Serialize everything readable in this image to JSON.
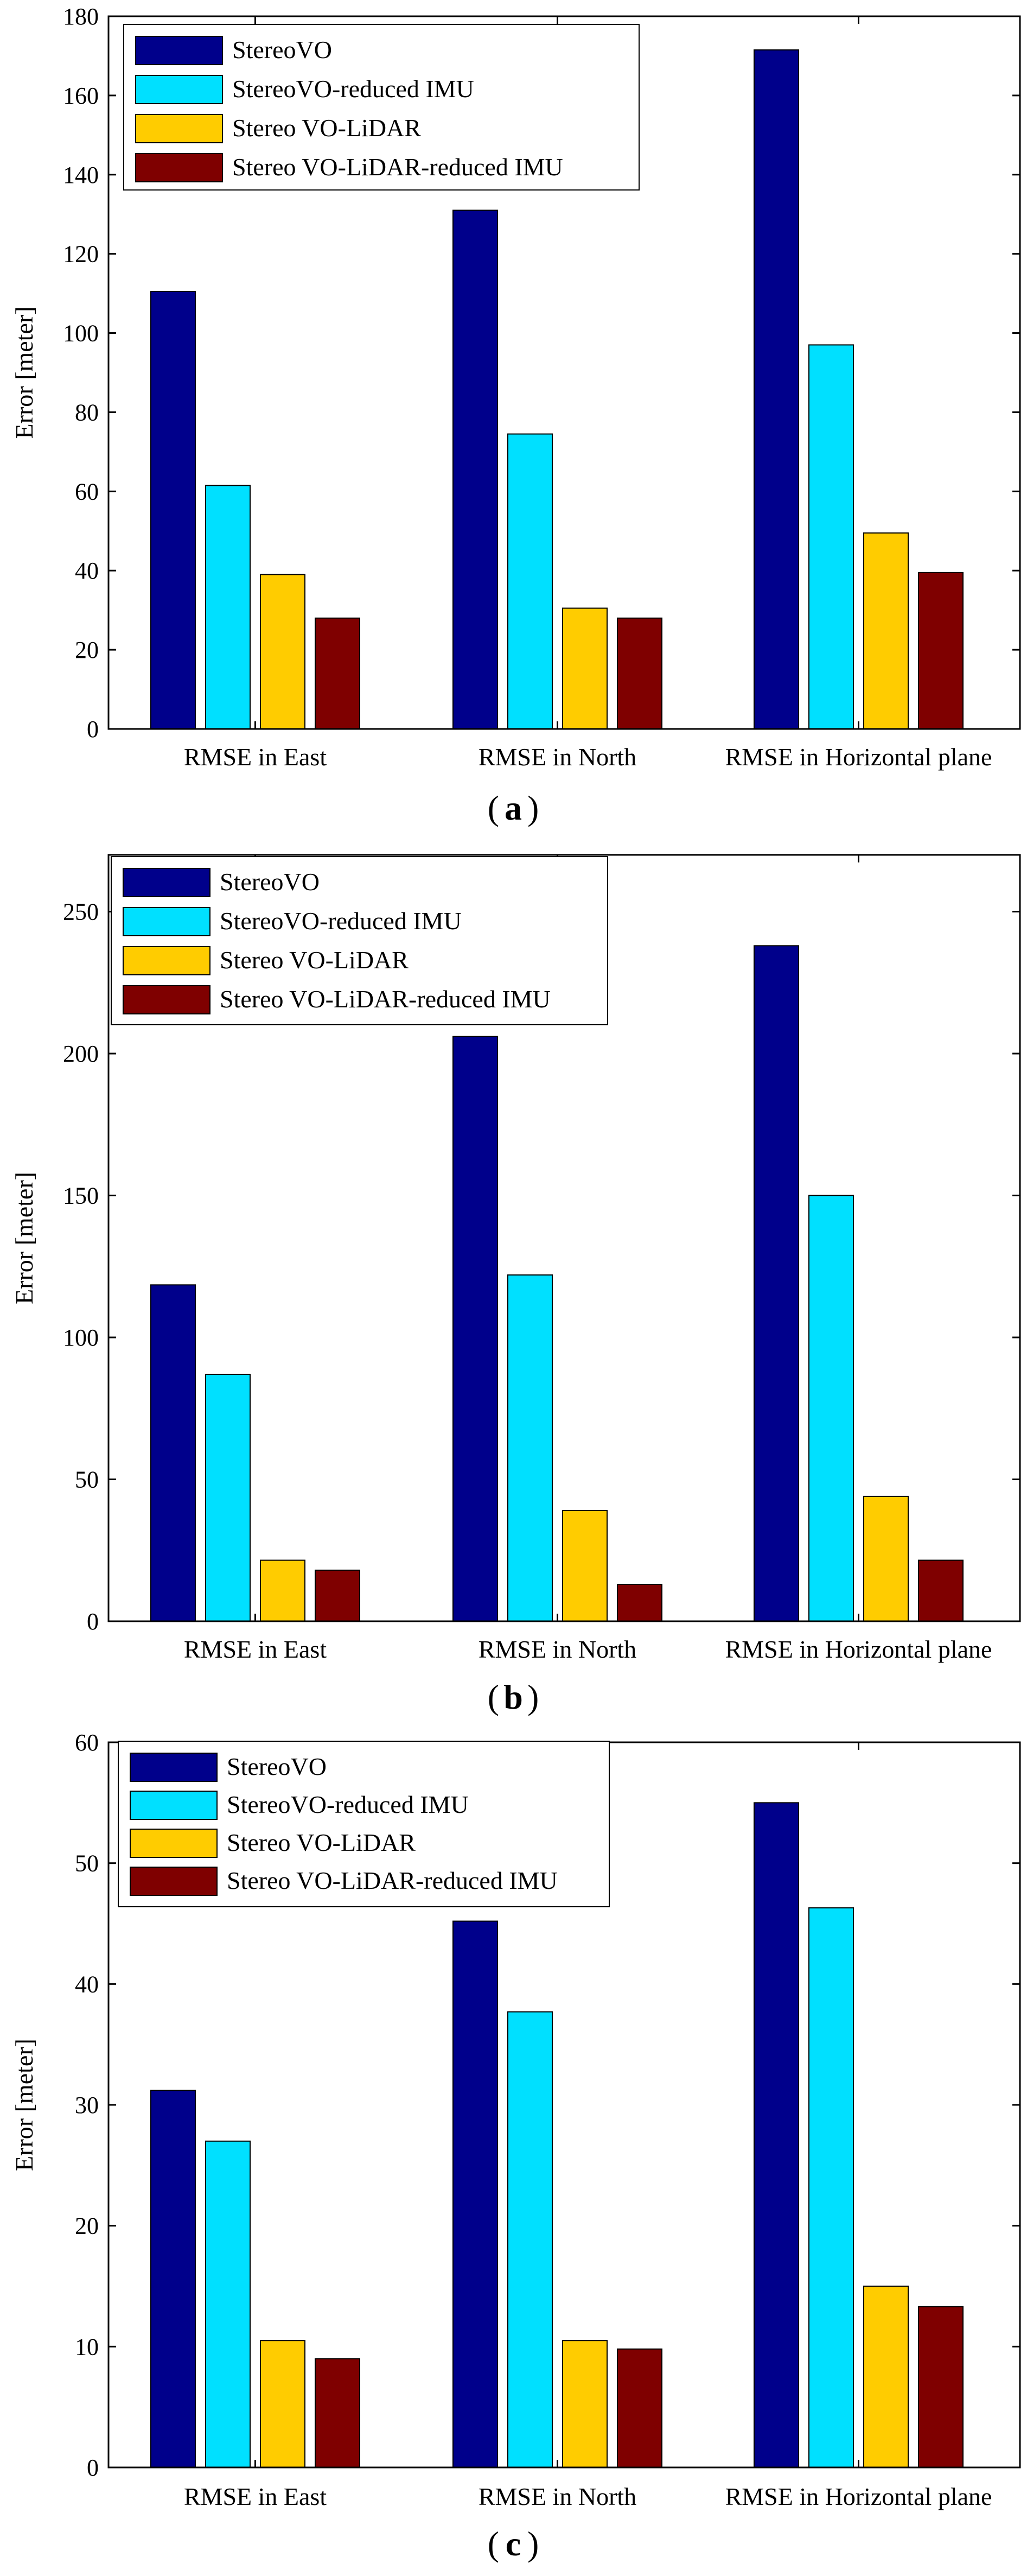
{
  "chart_data": [
    {
      "type": "bar",
      "caption_letter": "a",
      "ylabel": "Error [meter]",
      "ylim": [
        0,
        180
      ],
      "yticks": [
        0,
        20,
        40,
        60,
        80,
        100,
        120,
        140,
        160,
        180
      ],
      "categories": [
        "RMSE in East",
        "RMSE in North",
        "RMSE in Horizontal plane"
      ],
      "series": [
        {
          "name": "StereoVO",
          "color": "#00008B",
          "values": [
            110.5,
            131,
            171.5
          ]
        },
        {
          "name": "StereoVO-reduced IMU",
          "color": "#00E0FF",
          "values": [
            61.5,
            74.5,
            97
          ]
        },
        {
          "name": "Stereo VO-LiDAR",
          "color": "#FFCC00",
          "values": [
            39,
            30.5,
            49.5
          ]
        },
        {
          "name": "Stereo VO-LiDAR-reduced IMU",
          "color": "#7F0000",
          "values": [
            28,
            28,
            39.5
          ]
        }
      ],
      "legend_position": "top-left"
    },
    {
      "type": "bar",
      "caption_letter": "b",
      "ylabel": "Error [meter]",
      "ylim": [
        0,
        270
      ],
      "yticks": [
        0,
        50,
        100,
        150,
        200,
        250
      ],
      "categories": [
        "RMSE in East",
        "RMSE in North",
        "RMSE in Horizontal plane"
      ],
      "series": [
        {
          "name": "StereoVO",
          "color": "#00008B",
          "values": [
            118.5,
            206,
            238
          ]
        },
        {
          "name": "StereoVO-reduced IMU",
          "color": "#00E0FF",
          "values": [
            87,
            122,
            150
          ]
        },
        {
          "name": "Stereo VO-LiDAR",
          "color": "#FFCC00",
          "values": [
            21.5,
            39,
            44
          ]
        },
        {
          "name": "Stereo VO-LiDAR-reduced IMU",
          "color": "#7F0000",
          "values": [
            18,
            13,
            21.5
          ]
        }
      ],
      "legend_position": "top-left"
    },
    {
      "type": "bar",
      "caption_letter": "c",
      "ylabel": "Error [meter]",
      "ylim": [
        0,
        60
      ],
      "yticks": [
        0,
        10,
        20,
        30,
        40,
        50,
        60
      ],
      "categories": [
        "RMSE in East",
        "RMSE in North",
        "RMSE in Horizontal plane"
      ],
      "series": [
        {
          "name": "StereoVO",
          "color": "#00008B",
          "values": [
            31.2,
            45.2,
            55
          ]
        },
        {
          "name": "StereoVO-reduced IMU",
          "color": "#00E0FF",
          "values": [
            27,
            37.7,
            46.3
          ]
        },
        {
          "name": "Stereo VO-LiDAR",
          "color": "#FFCC00",
          "values": [
            10.5,
            10.5,
            15
          ]
        },
        {
          "name": "Stereo VO-LiDAR-reduced IMU",
          "color": "#7F0000",
          "values": [
            9,
            9.8,
            13.3
          ]
        }
      ],
      "legend_position": "top-left"
    }
  ]
}
